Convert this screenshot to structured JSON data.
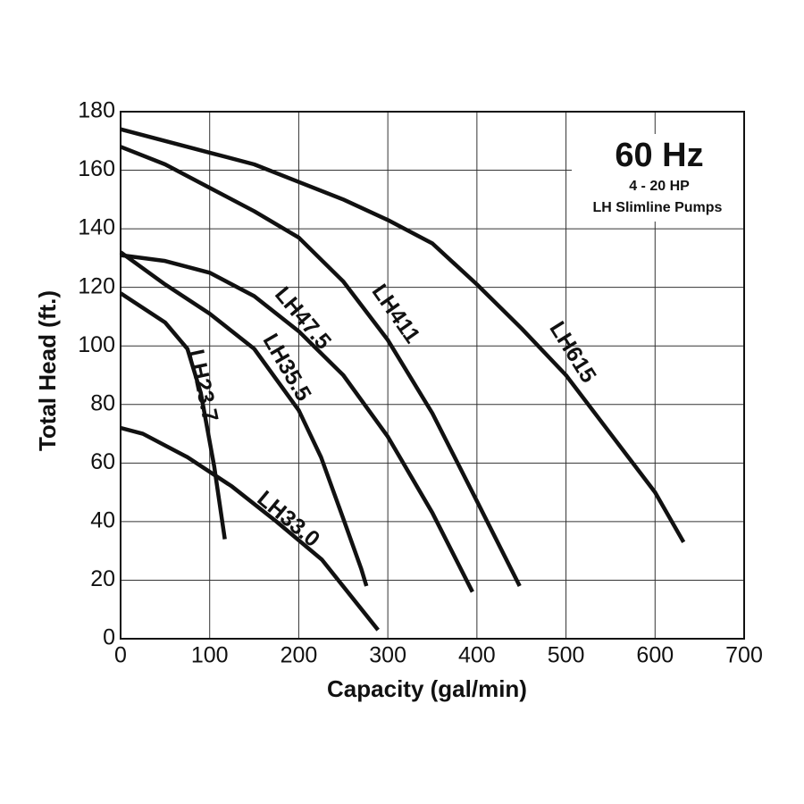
{
  "chart_data": {
    "type": "line",
    "xlabel": "Capacity (gal/min)",
    "ylabel": "Total Head (ft.)",
    "annotations": [
      "60 Hz",
      "4 - 20 HP",
      "LH Slimline Pumps"
    ],
    "xlim": [
      0,
      700
    ],
    "ylim": [
      0,
      180
    ],
    "xticks": [
      0,
      100,
      200,
      300,
      400,
      500,
      600,
      700
    ],
    "yticks": [
      0,
      20,
      40,
      60,
      80,
      100,
      120,
      140,
      160,
      180
    ],
    "grid": true,
    "series": [
      {
        "name": "LH615",
        "color": "#111111",
        "x": [
          0,
          100,
          150,
          200,
          250,
          300,
          350,
          400,
          450,
          500,
          550,
          600,
          632
        ],
        "values": [
          174,
          166,
          162,
          156,
          150,
          143,
          135,
          121,
          106,
          90,
          70,
          50,
          33
        ]
      },
      {
        "name": "LH411",
        "color": "#111111",
        "x": [
          0,
          50,
          100,
          150,
          200,
          250,
          300,
          350,
          400,
          448
        ],
        "values": [
          168,
          162,
          154,
          146,
          137,
          122,
          102,
          77,
          47,
          18
        ]
      },
      {
        "name": "LH47.5",
        "color": "#111111",
        "x": [
          0,
          50,
          100,
          150,
          200,
          250,
          300,
          350,
          395
        ],
        "values": [
          131,
          129,
          125,
          117,
          105,
          90,
          69,
          43,
          16
        ]
      },
      {
        "name": "LH35.5",
        "color": "#111111",
        "x": [
          0,
          50,
          100,
          150,
          200,
          225,
          250,
          270,
          276
        ],
        "values": [
          132,
          121,
          111,
          99,
          78,
          62,
          41,
          24,
          18
        ]
      },
      {
        "name": "LH23.7",
        "color": "#111111",
        "x": [
          0,
          50,
          75,
          90,
          105,
          117
        ],
        "values": [
          118,
          108,
          99,
          84,
          59,
          34
        ]
      },
      {
        "name": "LH33.0",
        "color": "#111111",
        "x": [
          0,
          25,
          75,
          125,
          175,
          226,
          289
        ],
        "values": [
          72,
          70,
          62,
          52,
          40,
          27,
          3
        ]
      }
    ]
  }
}
